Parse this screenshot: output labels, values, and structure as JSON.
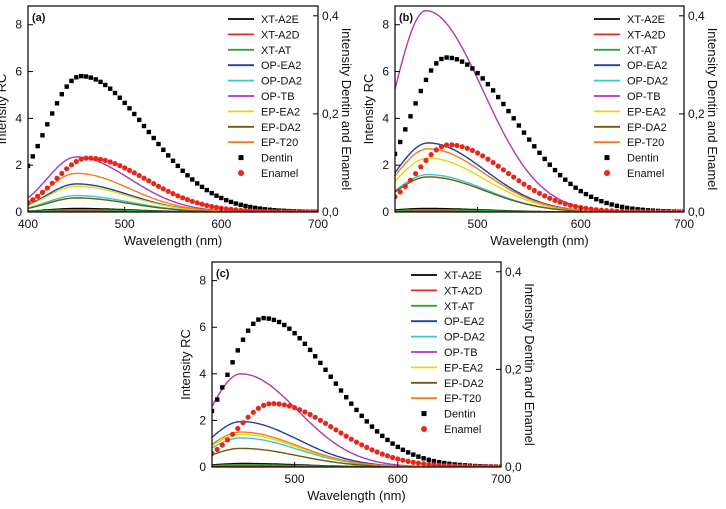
{
  "chart_data": [
    {
      "type": "line",
      "panel_label": "(a)",
      "xlabel": "Wavelength (nm)",
      "ylabel": "Intensity RC",
      "y2label": "Intensity Dentin and Enamel",
      "xlim": [
        400,
        700
      ],
      "ylim": [
        0,
        8.8
      ],
      "y2lim": [
        0,
        0.42
      ],
      "xticks": [
        "400",
        "500",
        "600",
        "700"
      ],
      "yticks": [
        "0",
        "2",
        "4",
        "6",
        "8"
      ],
      "y2ticks": [
        "0,0",
        "0,2",
        "0,4"
      ],
      "series": [
        {
          "name": "XT-A2E",
          "color": "#000000",
          "style": "line",
          "peak_x": 450,
          "peak_y": 0.15,
          "width": 55
        },
        {
          "name": "XT-A2D",
          "color": "#e8261c",
          "style": "line",
          "peak_x": 450,
          "peak_y": 0.05,
          "width": 55
        },
        {
          "name": "XT-AT",
          "color": "#2fa52f",
          "style": "line",
          "peak_x": 450,
          "peak_y": 0.1,
          "width": 55
        },
        {
          "name": "OP-EA2",
          "color": "#1f3f9e",
          "style": "line",
          "peak_x": 450,
          "peak_y": 1.2,
          "width": 55
        },
        {
          "name": "OP-DA2",
          "color": "#3cc8c8",
          "style": "line",
          "peak_x": 450,
          "peak_y": 0.7,
          "width": 55
        },
        {
          "name": "OP-TB",
          "color": "#b03aa8",
          "style": "line",
          "peak_x": 450,
          "peak_y": 2.35,
          "width": 55
        },
        {
          "name": "EP-EA2",
          "color": "#e6d80e",
          "style": "line",
          "peak_x": 450,
          "peak_y": 1.1,
          "width": 55
        },
        {
          "name": "EP-DA2",
          "color": "#6b5a12",
          "style": "line",
          "peak_x": 450,
          "peak_y": 0.6,
          "width": 55
        },
        {
          "name": "EP-T20",
          "color": "#f07d1e",
          "style": "line",
          "peak_x": 450,
          "peak_y": 1.65,
          "width": 55
        },
        {
          "name": "Dentin",
          "color": "#000000",
          "style": "square",
          "peak_x": 455,
          "peak_y": 0.277,
          "width": 68
        },
        {
          "name": "Enamel",
          "color": "#e8261c",
          "style": "circle",
          "peak_x": 462,
          "peak_y": 0.11,
          "width": 60
        }
      ]
    },
    {
      "type": "line",
      "panel_label": "(b)",
      "xlabel": "Wavelength (nm)",
      "ylabel": "Intensity RC",
      "y2label": "Intensity Dentin and Enamel",
      "xlim": [
        420,
        700
      ],
      "ylim": [
        0,
        8.8
      ],
      "y2lim": [
        0,
        0.42
      ],
      "xticks": [
        "500",
        "600",
        "700"
      ],
      "yticks": [
        "0",
        "2",
        "4",
        "6",
        "8"
      ],
      "y2ticks": [
        "0,0",
        "0,2",
        "0,4"
      ],
      "series": [
        {
          "name": "XT-A2E",
          "color": "#000000",
          "style": "line",
          "peak_x": 450,
          "peak_y": 0.15,
          "width": 55
        },
        {
          "name": "XT-A2D",
          "color": "#e8261c",
          "style": "line",
          "peak_x": 450,
          "peak_y": 0.05,
          "width": 55
        },
        {
          "name": "XT-AT",
          "color": "#2fa52f",
          "style": "line",
          "peak_x": 450,
          "peak_y": 0.1,
          "width": 55
        },
        {
          "name": "OP-EA2",
          "color": "#1f3f9e",
          "style": "line",
          "peak_x": 452,
          "peak_y": 2.95,
          "width": 55
        },
        {
          "name": "OP-DA2",
          "color": "#3cc8c8",
          "style": "line",
          "peak_x": 452,
          "peak_y": 1.6,
          "width": 55
        },
        {
          "name": "OP-TB",
          "color": "#b03aa8",
          "style": "line",
          "peak_x": 450,
          "peak_y": 8.6,
          "width": 55
        },
        {
          "name": "EP-EA2",
          "color": "#e6d80e",
          "style": "line",
          "peak_x": 452,
          "peak_y": 2.3,
          "width": 55
        },
        {
          "name": "EP-DA2",
          "color": "#6b5a12",
          "style": "line",
          "peak_x": 452,
          "peak_y": 1.5,
          "width": 55
        },
        {
          "name": "EP-T20",
          "color": "#f07d1e",
          "style": "line",
          "peak_x": 452,
          "peak_y": 2.7,
          "width": 55
        },
        {
          "name": "Dentin",
          "color": "#000000",
          "style": "square",
          "peak_x": 470,
          "peak_y": 0.315,
          "width": 65
        },
        {
          "name": "Enamel",
          "color": "#e8261c",
          "style": "circle",
          "peak_x": 472,
          "peak_y": 0.137,
          "width": 55
        }
      ]
    },
    {
      "type": "line",
      "panel_label": "(c)",
      "xlabel": "Wavelength (nm)",
      "ylabel": "Intensity RC",
      "y2label": "Intensity Dentin and Enamel",
      "xlim": [
        420,
        700
      ],
      "ylim": [
        0,
        8.8
      ],
      "y2lim": [
        0,
        0.42
      ],
      "xticks": [
        "500",
        "600",
        "700"
      ],
      "yticks": [
        "0",
        "2",
        "4",
        "6",
        "8"
      ],
      "y2ticks": [
        "0,0",
        "0,2",
        "0,4"
      ],
      "series": [
        {
          "name": "XT-A2E",
          "color": "#000000",
          "style": "line",
          "peak_x": 450,
          "peak_y": 0.15,
          "width": 55
        },
        {
          "name": "XT-A2D",
          "color": "#e8261c",
          "style": "line",
          "peak_x": 450,
          "peak_y": 0.05,
          "width": 55
        },
        {
          "name": "XT-AT",
          "color": "#2fa52f",
          "style": "line",
          "peak_x": 450,
          "peak_y": 0.1,
          "width": 55
        },
        {
          "name": "OP-EA2",
          "color": "#1f3f9e",
          "style": "line",
          "peak_x": 448,
          "peak_y": 1.95,
          "width": 55
        },
        {
          "name": "OP-DA2",
          "color": "#3cc8c8",
          "style": "line",
          "peak_x": 448,
          "peak_y": 1.25,
          "width": 55
        },
        {
          "name": "OP-TB",
          "color": "#b03aa8",
          "style": "line",
          "peak_x": 448,
          "peak_y": 4.0,
          "width": 55
        },
        {
          "name": "EP-EA2",
          "color": "#e6d80e",
          "style": "line",
          "peak_x": 448,
          "peak_y": 1.4,
          "width": 55
        },
        {
          "name": "EP-DA2",
          "color": "#6b5a12",
          "style": "line",
          "peak_x": 448,
          "peak_y": 0.8,
          "width": 55
        },
        {
          "name": "EP-T20",
          "color": "#f07d1e",
          "style": "line",
          "peak_x": 448,
          "peak_y": 1.5,
          "width": 55
        },
        {
          "name": "Dentin",
          "color": "#000000",
          "style": "square",
          "peak_x": 470,
          "peak_y": 0.305,
          "width": 65
        },
        {
          "name": "Enamel",
          "color": "#e8261c",
          "style": "circle",
          "peak_x": 478,
          "peak_y": 0.13,
          "width": 60
        }
      ]
    }
  ]
}
